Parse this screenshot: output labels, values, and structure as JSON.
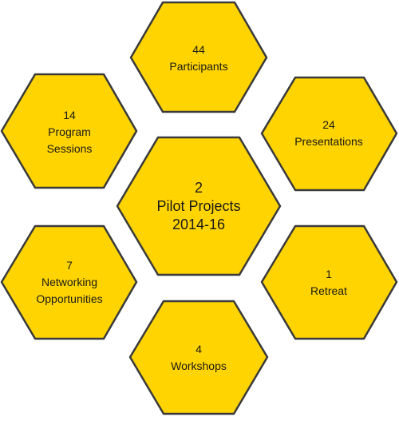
{
  "hexagons": {
    "participants": {
      "lines": [
        "44",
        "Participants"
      ],
      "fill": "#FFD400"
    },
    "presentations": {
      "lines": [
        "24",
        "Presentations"
      ],
      "fill": "#FFD400"
    },
    "retreat": {
      "lines": [
        "1",
        "Retreat"
      ],
      "fill": "#FFD400"
    },
    "workshops": {
      "lines": [
        "4",
        "Workshops"
      ],
      "fill": "#FFD400"
    },
    "networking": {
      "lines": [
        "7",
        "Networking",
        "Opportunities"
      ],
      "fill": "#FFD400"
    },
    "program_sessions": {
      "lines": [
        "14",
        "Program",
        "Sessions"
      ],
      "fill": "#FFD400"
    },
    "center": {
      "lines": [
        "2",
        "Pilot Projects",
        "2014-16"
      ],
      "fill": "#FFD400"
    }
  },
  "outline_color": "#3a3a3a"
}
